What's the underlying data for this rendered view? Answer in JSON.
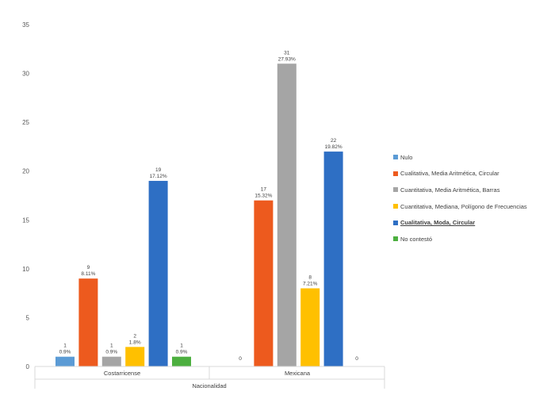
{
  "chart_data": {
    "type": "bar",
    "categories": [
      "Costarricense",
      "Mexicana"
    ],
    "xlabel": "Nacionalidad",
    "ylim": [
      0,
      35
    ],
    "y_ticks": [
      "0",
      "5",
      "10",
      "15",
      "20",
      "25",
      "30",
      "35"
    ],
    "grid": false,
    "legend_position": "right",
    "series": [
      {
        "name": "Nulo",
        "color": "#5B9BD5",
        "values": [
          1,
          0
        ],
        "labels": [
          [
            "1",
            "0.9%"
          ],
          [
            "0",
            ""
          ]
        ]
      },
      {
        "name": "Cualitativa, Media Aritmética, Circular",
        "color": "#ED5A1E",
        "values": [
          9,
          17
        ],
        "labels": [
          [
            "9",
            "8.11%"
          ],
          [
            "17",
            "15.32%"
          ]
        ]
      },
      {
        "name": "Cuantitativa, Media Aritmética, Barras",
        "color": "#A5A5A5",
        "values": [
          1,
          31
        ],
        "labels": [
          [
            "1",
            "0.9%"
          ],
          [
            "31",
            "27.93%"
          ]
        ]
      },
      {
        "name": "Cuantitativa, Mediana, Polígono de Frecuencias",
        "color": "#FFC000",
        "values": [
          2,
          8
        ],
        "labels": [
          [
            "2",
            "1.8%"
          ],
          [
            "8",
            "7.21%"
          ]
        ]
      },
      {
        "name": "Cualitativa, Moda, Circular",
        "color": "#2E6FC4",
        "values": [
          19,
          22
        ],
        "labels": [
          [
            "19",
            "17.12%"
          ],
          [
            "22",
            "19.82%"
          ]
        ],
        "legend_selected": true
      },
      {
        "name": "No contestó",
        "color": "#4CAF3F",
        "values": [
          1,
          0
        ],
        "labels": [
          [
            "1",
            "0.9%"
          ],
          [
            "0",
            ""
          ]
        ]
      }
    ]
  }
}
